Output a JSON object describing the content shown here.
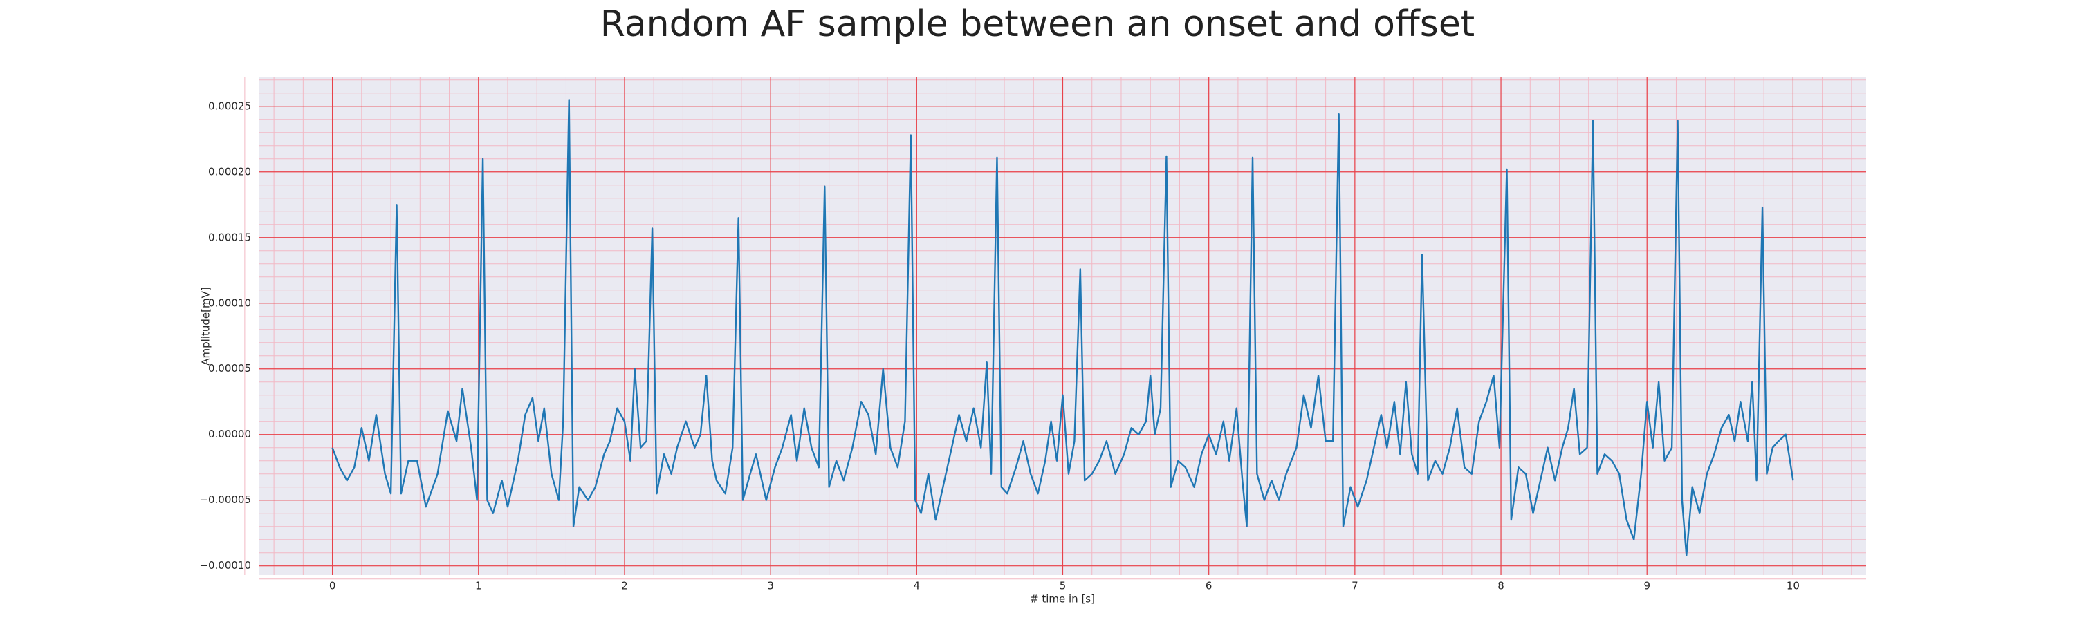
{
  "chart_data": {
    "type": "line",
    "title": "Random AF sample between an onset and offset",
    "xlabel": "# time in [s]",
    "ylabel": "Amplitude[mV]",
    "xlim": [
      -0.5,
      10.5
    ],
    "ylim": [
      -0.000107,
      0.000272
    ],
    "xticks": [
      0,
      1,
      2,
      3,
      4,
      5,
      6,
      7,
      8,
      9,
      10
    ],
    "yticks": [
      {
        "value": -0.0001,
        "label": "−0.00010"
      },
      {
        "value": -5e-05,
        "label": "−0.00005"
      },
      {
        "value": 0,
        "label": "0.00000"
      },
      {
        "value": 5e-05,
        "label": "0.00005"
      },
      {
        "value": 0.0001,
        "label": "0.00010"
      },
      {
        "value": 0.00015,
        "label": "0.00015"
      },
      {
        "value": 0.0002,
        "label": "0.00020"
      },
      {
        "value": 0.00025,
        "label": "0.00025"
      }
    ],
    "grid": true,
    "minor_grid": true,
    "grid_color": "#e8424a",
    "minor_grid_color": "#f2b8c4",
    "background": "#eaeaf2",
    "color": "#1f77b4",
    "x": [
      0,
      0.05,
      0.1,
      0.15,
      0.2,
      0.25,
      0.3,
      0.36,
      0.4,
      0.44,
      0.47,
      0.52,
      0.58,
      0.64,
      0.72,
      0.79,
      0.85,
      0.89,
      0.95,
      0.99,
      1.03,
      1.06,
      1.1,
      1.16,
      1.2,
      1.27,
      1.32,
      1.37,
      1.41,
      1.45,
      1.5,
      1.55,
      1.58,
      1.62,
      1.65,
      1.69,
      1.75,
      1.8,
      1.86,
      1.9,
      1.95,
      2.0,
      2.04,
      2.07,
      2.11,
      2.15,
      2.19,
      2.22,
      2.27,
      2.32,
      2.36,
      2.42,
      2.48,
      2.52,
      2.56,
      2.6,
      2.63,
      2.69,
      2.74,
      2.78,
      2.81,
      2.86,
      2.9,
      2.97,
      3.03,
      3.08,
      3.14,
      3.18,
      3.23,
      3.28,
      3.33,
      3.37,
      3.4,
      3.45,
      3.5,
      3.56,
      3.62,
      3.67,
      3.72,
      3.77,
      3.82,
      3.87,
      3.92,
      3.96,
      3.99,
      4.03,
      4.08,
      4.13,
      4.18,
      4.24,
      4.29,
      4.34,
      4.39,
      4.44,
      4.48,
      4.51,
      4.55,
      4.58,
      4.62,
      4.68,
      4.73,
      4.78,
      4.83,
      4.88,
      4.92,
      4.96,
      5.0,
      5.04,
      5.08,
      5.12,
      5.15,
      5.2,
      5.25,
      5.3,
      5.36,
      5.42,
      5.47,
      5.52,
      5.57,
      5.6,
      5.63,
      5.67,
      5.71,
      5.74,
      5.79,
      5.84,
      5.9,
      5.95,
      6.0,
      6.05,
      6.1,
      6.14,
      6.19,
      6.23,
      6.26,
      6.3,
      6.33,
      6.38,
      6.43,
      6.48,
      6.53,
      6.6,
      6.65,
      6.7,
      6.75,
      6.8,
      6.85,
      6.89,
      6.92,
      6.97,
      7.02,
      7.08,
      7.13,
      7.18,
      7.22,
      7.27,
      7.31,
      7.35,
      7.39,
      7.43,
      7.46,
      7.5,
      7.55,
      7.6,
      7.65,
      7.7,
      7.75,
      7.8,
      7.85,
      7.9,
      7.95,
      7.99,
      8.04,
      8.07,
      8.12,
      8.17,
      8.22,
      8.27,
      8.32,
      8.37,
      8.42,
      8.46,
      8.5,
      8.54,
      8.59,
      8.63,
      8.66,
      8.71,
      8.76,
      8.81,
      8.86,
      8.91,
      8.96,
      9.0,
      9.04,
      9.08,
      9.12,
      9.17,
      9.21,
      9.24,
      9.27,
      9.31,
      9.36,
      9.41,
      9.46,
      9.51,
      9.56,
      9.6,
      9.64,
      9.69,
      9.72,
      9.75,
      9.79,
      9.82,
      9.86,
      9.9,
      9.95,
      10.0
    ],
    "values": [
      -1e-05,
      -2.5e-05,
      -3.5e-05,
      -2.5e-05,
      5e-06,
      -2e-05,
      1.5e-05,
      -3e-05,
      -4.5e-05,
      0.000175,
      -4.5e-05,
      -2e-05,
      -2e-05,
      -5.5e-05,
      -3e-05,
      1.8e-05,
      -5e-06,
      3.5e-05,
      -1e-05,
      -5e-05,
      0.00021,
      -5e-05,
      -6e-05,
      -3.5e-05,
      -5.5e-05,
      -2e-05,
      1.5e-05,
      2.8e-05,
      -5e-06,
      2e-05,
      -3e-05,
      -5e-05,
      1e-05,
      0.000255,
      -7e-05,
      -4e-05,
      -5e-05,
      -4e-05,
      -1.5e-05,
      -5e-06,
      2e-05,
      1e-05,
      -2e-05,
      5e-05,
      -1e-05,
      -5e-06,
      0.000157,
      -4.5e-05,
      -1.5e-05,
      -3e-05,
      -1e-05,
      1e-05,
      -1e-05,
      0,
      4.5e-05,
      -2e-05,
      -3.5e-05,
      -4.5e-05,
      -1e-05,
      0.000165,
      -5e-05,
      -3e-05,
      -1.5e-05,
      -5e-05,
      -2.5e-05,
      -1e-05,
      1.5e-05,
      -2e-05,
      2e-05,
      -1e-05,
      -2.5e-05,
      0.000189,
      -4e-05,
      -2e-05,
      -3.5e-05,
      -1e-05,
      2.5e-05,
      1.5e-05,
      -1.5e-05,
      5e-05,
      -1e-05,
      -2.5e-05,
      1e-05,
      0.000228,
      -5e-05,
      -6e-05,
      -3e-05,
      -6.5e-05,
      -4e-05,
      -1e-05,
      1.5e-05,
      -5e-06,
      2e-05,
      -1e-05,
      5.5e-05,
      -3e-05,
      0.000211,
      -4e-05,
      -4.5e-05,
      -2.5e-05,
      -5e-06,
      -3e-05,
      -4.5e-05,
      -2e-05,
      1e-05,
      -2e-05,
      3e-05,
      -3e-05,
      -5e-06,
      0.000126,
      -3.5e-05,
      -3e-05,
      -2e-05,
      -5e-06,
      -3e-05,
      -1.5e-05,
      5e-06,
      0,
      1e-05,
      4.5e-05,
      0,
      2e-05,
      0.000212,
      -4e-05,
      -2e-05,
      -2.5e-05,
      -4e-05,
      -1.5e-05,
      0,
      -1.5e-05,
      1e-05,
      -2e-05,
      2e-05,
      -3.5e-05,
      -7e-05,
      0.000211,
      -3e-05,
      -5e-05,
      -3.5e-05,
      -5e-05,
      -3e-05,
      -1e-05,
      3e-05,
      5e-06,
      4.5e-05,
      -5e-06,
      -5e-06,
      0.000244,
      -7e-05,
      -4e-05,
      -5.5e-05,
      -3.5e-05,
      -1e-05,
      1.5e-05,
      -1e-05,
      2.5e-05,
      -1.5e-05,
      4e-05,
      -1.5e-05,
      -3e-05,
      0.000137,
      -3.5e-05,
      -2e-05,
      -3e-05,
      -1e-05,
      2e-05,
      -2.5e-05,
      -3e-05,
      1e-05,
      2.5e-05,
      4.5e-05,
      -1e-05,
      0.000202,
      -6.5e-05,
      -2.5e-05,
      -3e-05,
      -6e-05,
      -3.5e-05,
      -1e-05,
      -3.5e-05,
      -1e-05,
      5e-06,
      3.5e-05,
      -1.5e-05,
      -1e-05,
      0.000239,
      -3e-05,
      -1.5e-05,
      -2e-05,
      -3e-05,
      -6.5e-05,
      -8e-05,
      -3e-05,
      2.5e-05,
      -1e-05,
      4e-05,
      -2e-05,
      -1e-05,
      0.000239,
      -5e-05,
      -9.2e-05,
      -4e-05,
      -6e-05,
      -3e-05,
      -1.5e-05,
      5e-06,
      1.5e-05,
      -5e-06,
      2.5e-05,
      -5e-06,
      4e-05,
      -3.5e-05,
      0.000173,
      -3e-05,
      -1e-05,
      -5e-06,
      0,
      -3.5e-05
    ]
  }
}
